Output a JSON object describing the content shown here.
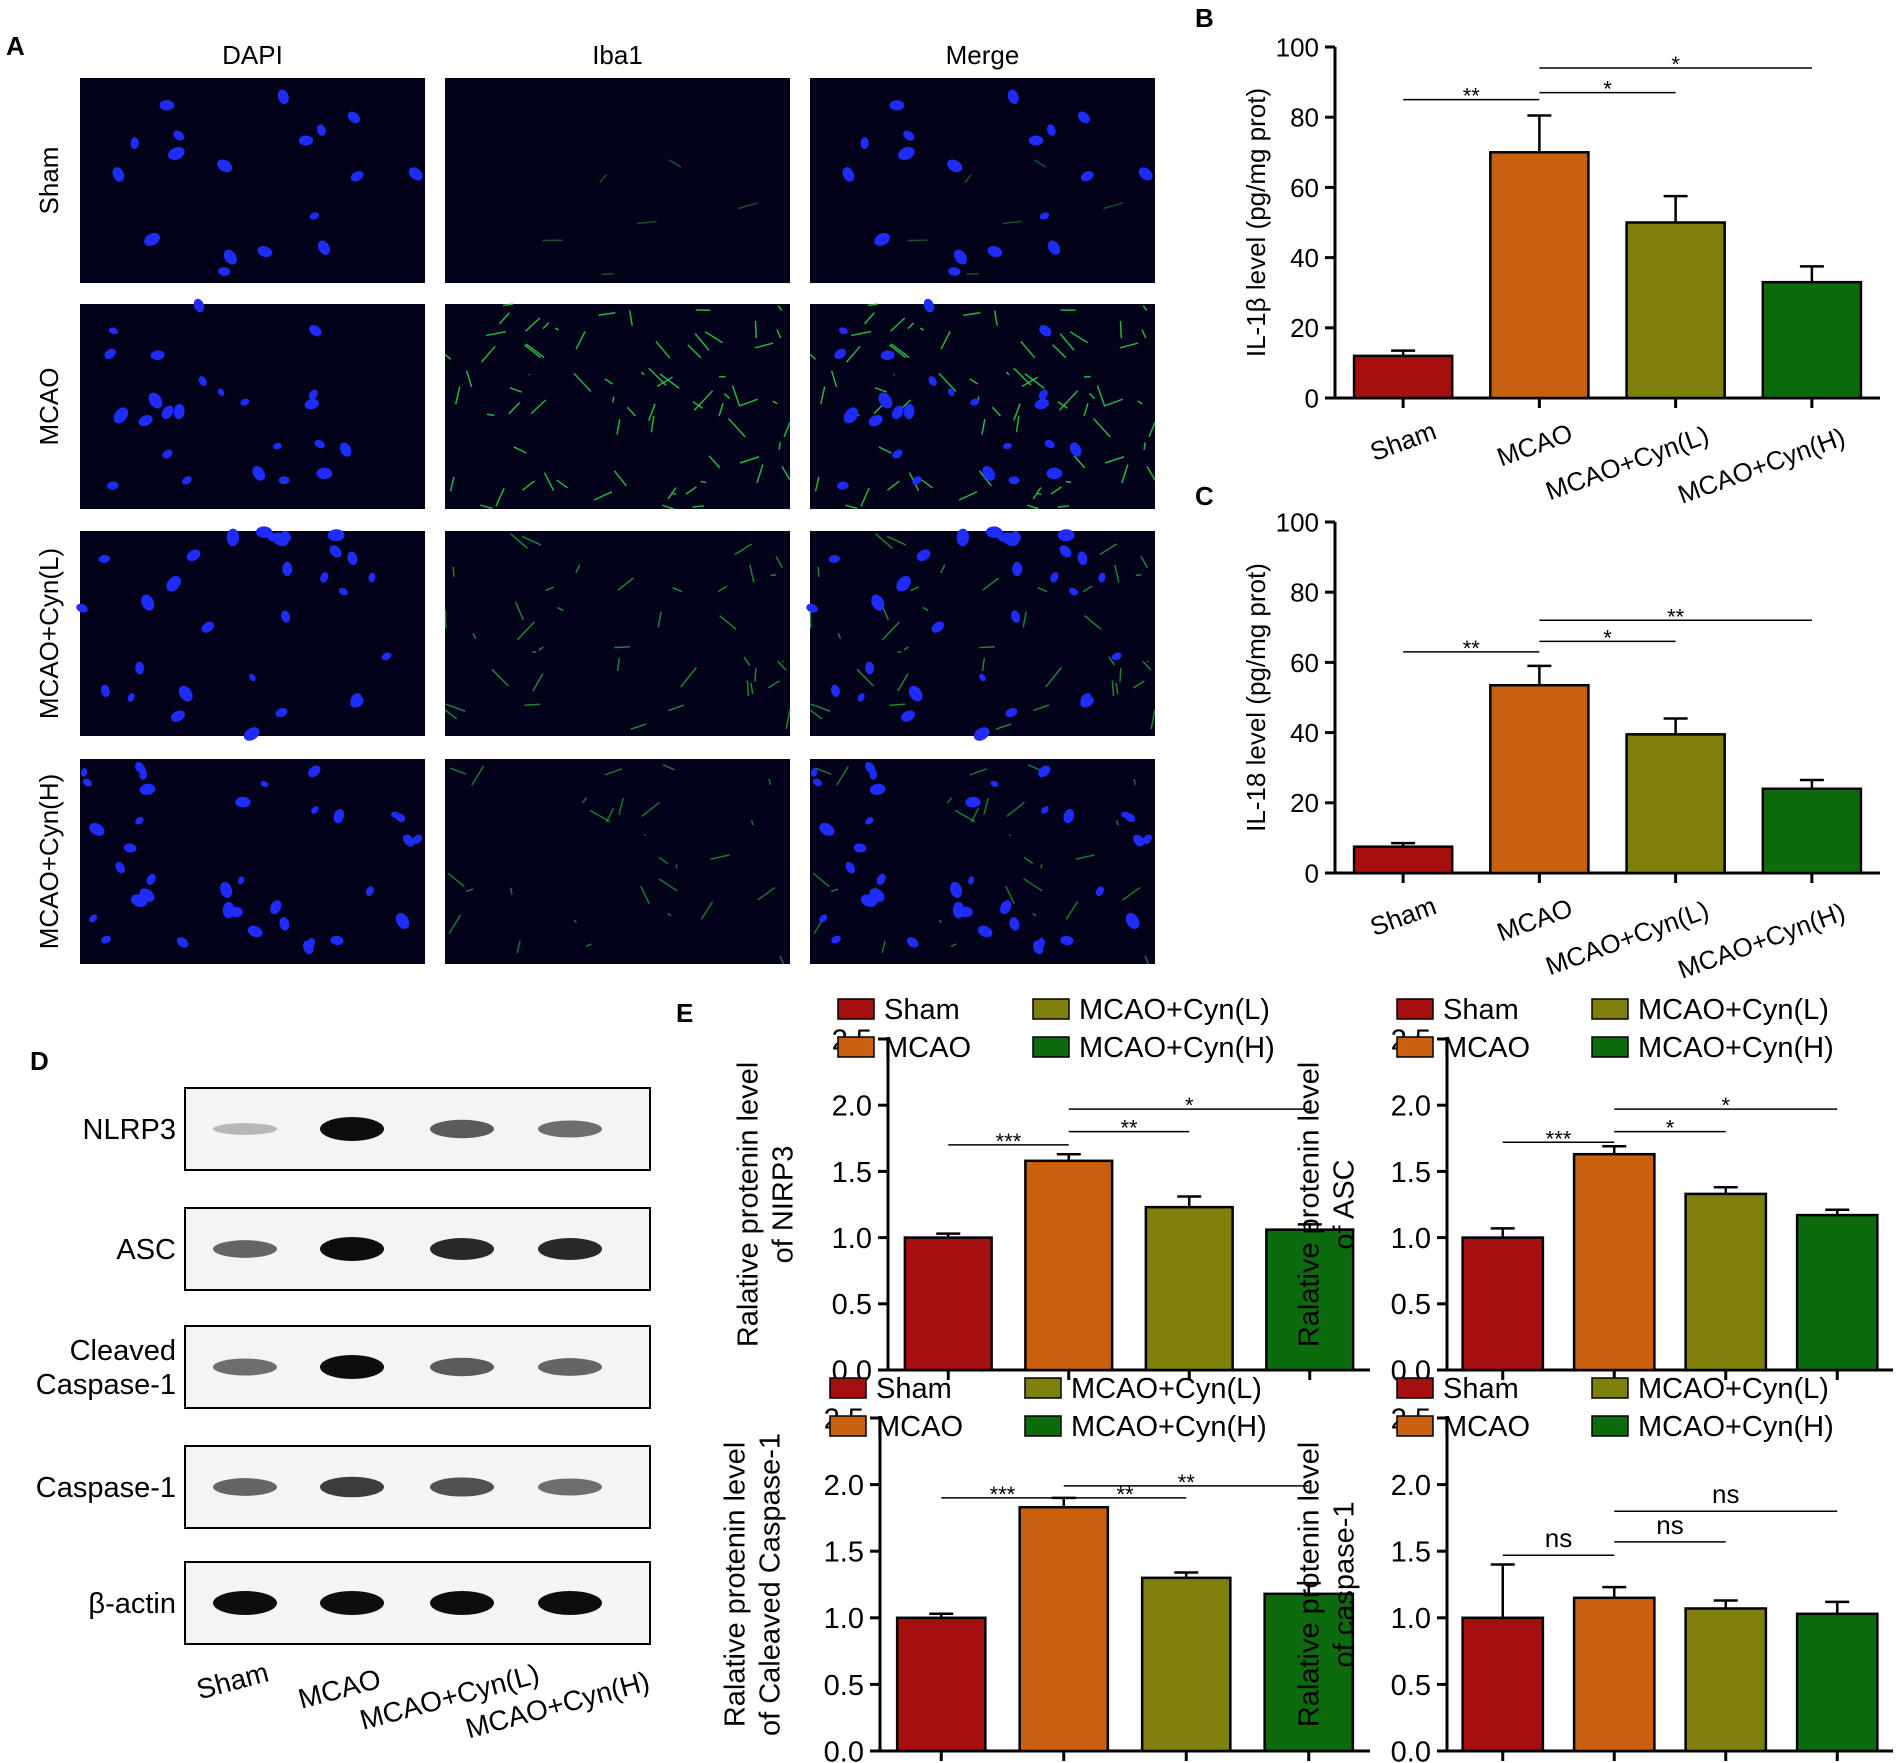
{
  "panel_letters": {
    "a": "A",
    "b": "B",
    "c": "C",
    "d": "D",
    "e": "E"
  },
  "microscopy": {
    "columns": [
      "DAPI",
      "Iba1",
      "Merge"
    ],
    "rows": [
      "Sham",
      "MCAO",
      "MCAO+Cyn(L)",
      "MCAO+Cyn(H)"
    ],
    "iba1_signal": [
      0.08,
      1.0,
      0.55,
      0.4
    ],
    "dapi_color": "#1f2cff",
    "iba1_color": "#2fd14a",
    "background_color": "#02021a"
  },
  "western_blot": {
    "proteins": [
      "NLRP3",
      "ASC",
      "Cleaved\nCaspase-1",
      "Caspase-1",
      "β-actin"
    ],
    "lanes": [
      "Sham",
      "MCAO",
      "MCAO+Cyn(L)",
      "MCAO+Cyn(H)"
    ],
    "band_intensity": [
      [
        0.12,
        1.0,
        0.6,
        0.5
      ],
      [
        0.55,
        1.0,
        0.85,
        0.85
      ],
      [
        0.5,
        1.0,
        0.6,
        0.55
      ],
      [
        0.55,
        0.75,
        0.65,
        0.5
      ],
      [
        1.0,
        1.0,
        1.0,
        1.0
      ]
    ]
  },
  "colors": {
    "Sham": "#a50f0f",
    "MCAO": "#c9600e",
    "MCAO+Cyn(L)": "#7f7f0c",
    "MCAO+Cyn(H)": "#0c6b0c"
  },
  "chart_data": [
    {
      "id": "B",
      "type": "bar",
      "categories": [
        "Sham",
        "MCAO",
        "MCAO+Cyn(L)",
        "MCAO+Cyn(H)"
      ],
      "values": [
        12,
        70,
        50,
        33
      ],
      "errors": [
        1.5,
        10.5,
        7.5,
        4.5
      ],
      "ylabel": "IL-1β level (pg/mg prot)",
      "ylim": [
        0,
        100
      ],
      "yticks": [
        "0",
        "20",
        "40",
        "60",
        "80",
        "100"
      ],
      "significance": [
        {
          "from": 0,
          "to": 1,
          "label": "**",
          "y": 85
        },
        {
          "from": 1,
          "to": 2,
          "label": "*",
          "y": 87
        },
        {
          "from": 1,
          "to": 3,
          "label": "*",
          "y": 94
        }
      ]
    },
    {
      "id": "C",
      "type": "bar",
      "categories": [
        "Sham",
        "MCAO",
        "MCAO+Cyn(L)",
        "MCAO+Cyn(H)"
      ],
      "values": [
        7.5,
        53.5,
        39.5,
        24
      ],
      "errors": [
        1,
        5.5,
        4.5,
        2.5
      ],
      "ylabel": "IL-18 level (pg/mg prot)",
      "ylim": [
        0,
        100
      ],
      "yticks": [
        "0",
        "20",
        "40",
        "60",
        "80",
        "100"
      ],
      "significance": [
        {
          "from": 0,
          "to": 1,
          "label": "**",
          "y": 63
        },
        {
          "from": 1,
          "to": 2,
          "label": "*",
          "y": 66
        },
        {
          "from": 1,
          "to": 3,
          "label": "**",
          "y": 72
        }
      ]
    },
    {
      "id": "E1",
      "type": "bar",
      "categories": [
        "Sham",
        "MCAO",
        "MCAO+Cyn(L)",
        "MCAO+Cyn(H)"
      ],
      "values": [
        1.0,
        1.58,
        1.23,
        1.06
      ],
      "errors": [
        0.03,
        0.05,
        0.08,
        0.04
      ],
      "ylabel": "Ralative protenin level\nof NIRP3",
      "ylim": [
        0,
        2.5
      ],
      "yticks": [
        "0.0",
        "0.5",
        "1.0",
        "1.5",
        "2.0",
        "2.5"
      ],
      "legend": [
        "Sham",
        "MCAO",
        "MCAO+Cyn(L)",
        "MCAO+Cyn(H)"
      ],
      "significance": [
        {
          "from": 0,
          "to": 1,
          "label": "***",
          "y": 1.7
        },
        {
          "from": 1,
          "to": 2,
          "label": "**",
          "y": 1.8
        },
        {
          "from": 1,
          "to": 3,
          "label": "*",
          "y": 1.97
        }
      ]
    },
    {
      "id": "E2",
      "type": "bar",
      "categories": [
        "Sham",
        "MCAO",
        "MCAO+Cyn(L)",
        "MCAO+Cyn(H)"
      ],
      "values": [
        1.0,
        1.63,
        1.33,
        1.17
      ],
      "errors": [
        0.07,
        0.06,
        0.05,
        0.04
      ],
      "ylabel": "Ralative protenin level\nof ASC",
      "ylim": [
        0,
        2.5
      ],
      "yticks": [
        "0.0",
        "0.5",
        "1.0",
        "1.5",
        "2.0",
        "2.5"
      ],
      "legend": [
        "Sham",
        "MCAO",
        "MCAO+Cyn(L)",
        "MCAO+Cyn(H)"
      ],
      "significance": [
        {
          "from": 0,
          "to": 1,
          "label": "***",
          "y": 1.72
        },
        {
          "from": 1,
          "to": 2,
          "label": "*",
          "y": 1.8
        },
        {
          "from": 1,
          "to": 3,
          "label": "*",
          "y": 1.97
        }
      ]
    },
    {
      "id": "E3",
      "type": "bar",
      "categories": [
        "Sham",
        "MCAO",
        "MCAO+Cyn(L)",
        "MCAO+Cyn(H)"
      ],
      "values": [
        1.0,
        1.83,
        1.3,
        1.18
      ],
      "errors": [
        0.03,
        0.07,
        0.04,
        0.08
      ],
      "ylabel": "Ralative protenin level\nof Caleaved Caspase-1",
      "ylim": [
        0,
        2.5
      ],
      "yticks": [
        "0.0",
        "0.5",
        "1.0",
        "1.5",
        "2.0",
        "2.5"
      ],
      "legend": [
        "Sham",
        "MCAO",
        "MCAO+Cyn(L)",
        "MCAO+Cyn(H)"
      ],
      "significance": [
        {
          "from": 0,
          "to": 1,
          "label": "***",
          "y": 1.9
        },
        {
          "from": 1,
          "to": 2,
          "label": "**",
          "y": 1.9
        },
        {
          "from": 1,
          "to": 3,
          "label": "**",
          "y": 1.99
        }
      ]
    },
    {
      "id": "E4",
      "type": "bar",
      "categories": [
        "Sham",
        "MCAO",
        "MCAO+Cyn(L)",
        "MCAO+Cyn(H)"
      ],
      "values": [
        1.0,
        1.15,
        1.07,
        1.03
      ],
      "errors": [
        0.4,
        0.08,
        0.06,
        0.09
      ],
      "ylabel": "Ralative protenin level\nof caspase-1",
      "ylim": [
        0,
        2.5
      ],
      "yticks": [
        "0.0",
        "0.5",
        "1.0",
        "1.5",
        "2.0",
        "2.5"
      ],
      "legend": [
        "Sham",
        "MCAO",
        "MCAO+Cyn(L)",
        "MCAO+Cyn(H)"
      ],
      "significance": [
        {
          "from": 0,
          "to": 1,
          "label": "ns",
          "y": 1.47
        },
        {
          "from": 1,
          "to": 2,
          "label": "ns",
          "y": 1.57
        },
        {
          "from": 1,
          "to": 3,
          "label": "ns",
          "y": 1.8
        }
      ]
    }
  ]
}
